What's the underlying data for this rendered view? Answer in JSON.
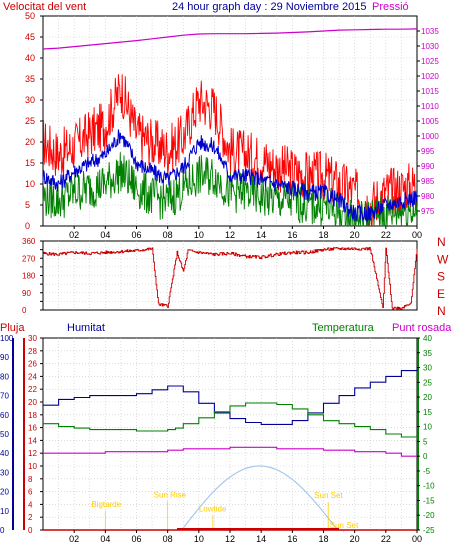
{
  "header": {
    "left_label": "Velocitat del vent",
    "title": "24 hour graph day : 29 Noviembre 2015",
    "right_label": "Pressió"
  },
  "lower_header": {
    "rain": "Pluja",
    "humidity": "Humitat",
    "temperature": "Temperatura",
    "dew": "Punt rosada"
  },
  "colors": {
    "wind_gust": "#ff0000",
    "wind_avg": "#0000cc",
    "wind_low": "#008000",
    "pressure": "#cc00cc",
    "direction": "#cc0000",
    "humidity": "#000099",
    "temperature": "#008000",
    "dew": "#cc00cc",
    "rain": "#cc0000",
    "solar": "#a8c8ee",
    "sun_events": "#ffcc00"
  },
  "x_tick_labels": [
    "02",
    "04",
    "06",
    "08",
    "10",
    "12",
    "14",
    "16",
    "18",
    "20",
    "22",
    "00"
  ],
  "chart_data": [
    {
      "type": "line",
      "name": "wind-pressure",
      "x": [
        0,
        1,
        2,
        3,
        4,
        5,
        6,
        7,
        8,
        9,
        10,
        11,
        12,
        13,
        14,
        15,
        16,
        17,
        18,
        19,
        20,
        21,
        22,
        23,
        24
      ],
      "series": [
        {
          "name": "Velocitat del vent",
          "values": [
            20,
            17,
            19,
            22,
            24,
            33,
            22,
            20,
            18,
            21,
            30,
            28,
            18,
            17,
            16,
            14,
            13,
            12,
            12,
            10,
            8,
            5,
            8,
            9,
            10
          ]
        },
        {
          "name": "",
          "values": [
            12,
            10,
            13,
            15,
            17,
            22,
            15,
            13,
            11,
            14,
            20,
            19,
            12,
            12,
            11,
            10,
            9,
            8,
            8,
            6,
            3,
            3,
            5,
            6,
            7
          ]
        },
        {
          "name": "",
          "values": [
            7,
            6,
            8,
            9,
            10,
            13,
            9,
            7,
            6,
            9,
            12,
            12,
            8,
            8,
            7,
            6,
            6,
            5,
            5,
            3,
            1,
            2,
            3,
            4,
            4
          ]
        },
        {
          "name": "Pressió",
          "axis": "right",
          "values": [
            1029,
            1029.3,
            1029.8,
            1030.3,
            1030.8,
            1031.3,
            1031.8,
            1032.4,
            1033,
            1033.6,
            1034,
            1034.1,
            1034.1,
            1034.1,
            1034.2,
            1034.3,
            1034.5,
            1034.7,
            1035,
            1035.3,
            1035.4,
            1035.5,
            1035.6,
            1035.6,
            1035.7
          ]
        }
      ],
      "ylim": [
        0,
        50
      ],
      "yticks": [
        0,
        5,
        10,
        15,
        20,
        25,
        30,
        35,
        40,
        45,
        50
      ],
      "y2lim": [
        970,
        1040
      ],
      "y2ticks": [
        975,
        980,
        985,
        990,
        995,
        1000,
        1005,
        1010,
        1015,
        1020,
        1025,
        1030,
        1035
      ],
      "grid": true
    },
    {
      "type": "line",
      "name": "wind-direction",
      "x": [
        0,
        1,
        2,
        3,
        4,
        5,
        6,
        7,
        7.4,
        8,
        8.6,
        9,
        9.3,
        10,
        11,
        12,
        13,
        14,
        15,
        16,
        17,
        18,
        19,
        20,
        21,
        21.8,
        22,
        22.4,
        23,
        23.6,
        24
      ],
      "series": [
        {
          "name": "",
          "values": [
            295,
            290,
            300,
            295,
            300,
            305,
            310,
            320,
            30,
            20,
            300,
            200,
            310,
            300,
            290,
            295,
            280,
            275,
            290,
            300,
            300,
            315,
            320,
            320,
            320,
            10,
            320,
            10,
            10,
            40,
            320
          ]
        }
      ],
      "ylim": [
        0,
        360
      ],
      "yticks": [
        0,
        45,
        90,
        135,
        180,
        225,
        270,
        315,
        360
      ],
      "ytick_labels": [
        "0",
        "45",
        "90",
        "135",
        "180",
        "225",
        "270",
        "315",
        "360"
      ],
      "compass_labels": [
        "N",
        "W",
        "S",
        "E",
        "N"
      ],
      "grid": true
    },
    {
      "type": "line",
      "name": "rain-humidity-temperature",
      "x": [
        0,
        1,
        2,
        3,
        4,
        5,
        6,
        7,
        8,
        8.5,
        9,
        10,
        11,
        12,
        13,
        14,
        15,
        16,
        17,
        18,
        19,
        20,
        21,
        22,
        23,
        24
      ],
      "series": [
        {
          "name": "Humitat",
          "axis": "humidity",
          "values": [
            65,
            68,
            69,
            70,
            70,
            70,
            71,
            73,
            75,
            75,
            72,
            66,
            61,
            58,
            56,
            55,
            55,
            57,
            61,
            66,
            70,
            74,
            77,
            80,
            83,
            84
          ]
        },
        {
          "name": "Temperatura",
          "axis": "temperature",
          "values": [
            11,
            10,
            9.5,
            9,
            9,
            9,
            8.5,
            8.5,
            9,
            9.5,
            11,
            13,
            15,
            17,
            18,
            18,
            17.5,
            16,
            14,
            12,
            11,
            10,
            9,
            7.5,
            6.5,
            6
          ]
        },
        {
          "name": "Punt rosada",
          "axis": "temperature",
          "values": [
            1,
            1,
            1,
            1,
            1.5,
            1.5,
            1.5,
            1.5,
            2,
            2,
            2.5,
            2.5,
            2.5,
            3,
            3,
            3,
            2.5,
            2.5,
            2.5,
            2,
            2,
            1.5,
            1.5,
            1,
            0,
            0
          ]
        },
        {
          "name": "Pluja",
          "axis": "rain",
          "values": [
            0,
            0,
            0,
            0,
            0,
            0,
            0,
            0,
            0,
            0,
            0,
            0,
            0,
            0,
            0,
            0,
            0,
            0,
            0,
            0,
            0,
            0,
            0,
            0,
            0,
            0
          ]
        }
      ],
      "rain_ylim": [
        0,
        30
      ],
      "rain_yticks": [
        0,
        2,
        4,
        6,
        8,
        10,
        12,
        14,
        16,
        18,
        20,
        22,
        24,
        26,
        28,
        30
      ],
      "humidity_ylim": [
        0,
        100
      ],
      "humidity_yticks": [
        0,
        10,
        20,
        30,
        40,
        50,
        60,
        70,
        80,
        90,
        100
      ],
      "temperature_ylim": [
        -25,
        40
      ],
      "temperature_yticks": [
        -25,
        -20,
        -15,
        -10,
        -5,
        0,
        5,
        10,
        15,
        20,
        25,
        30,
        35,
        40
      ],
      "solar": {
        "start": 8.9,
        "peak": 13.9,
        "end": 18.9,
        "peak_value": 10
      },
      "sun_events": [
        {
          "label": "Bigtarde",
          "x": 4.0,
          "y": 3.6
        },
        {
          "label": "Sun Rise",
          "x": 8.0,
          "y": 5.1
        },
        {
          "label": "Lowtide",
          "x": 10.9,
          "y": 2.9
        },
        {
          "label": "Sun Set",
          "x": 18.3,
          "y": 5.0
        },
        {
          "label": "Sun Set",
          "x": 19.3,
          "y": 0.3
        }
      ],
      "grid": true
    }
  ]
}
